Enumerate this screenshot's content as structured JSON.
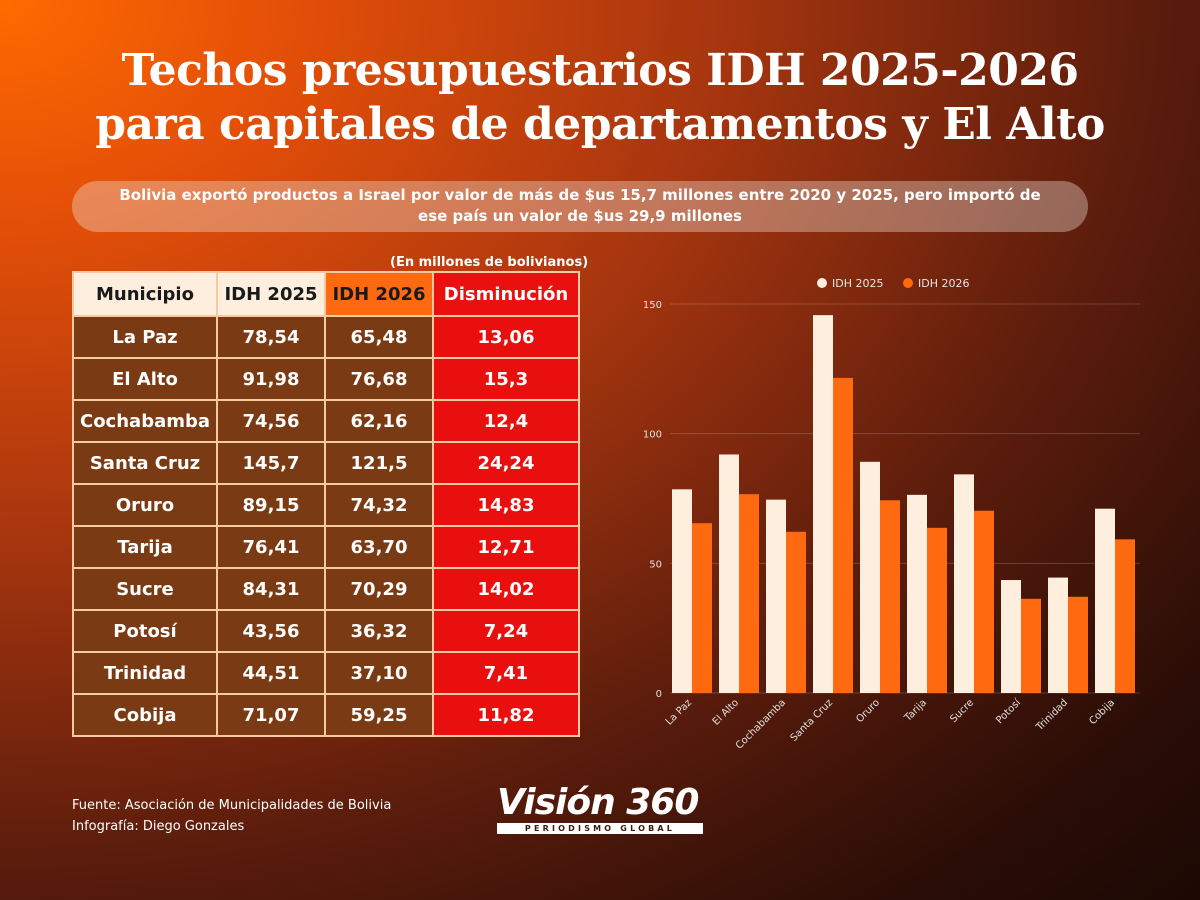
{
  "header": {
    "title_line1": "Techos presupuestarios IDH 2025-2026",
    "title_line2": "para capitales de departamentos y El Alto",
    "subtitle_line1": "Bolivia exportó productos a Israel por valor de más de $us  15,7 millones entre 2020 y 2025, pero importó de",
    "subtitle_line2": "ese país un valor de $us 29,9 millones"
  },
  "table": {
    "units": "(En millones de bolivianos)",
    "headers": [
      "Municipio",
      "IDH 2025",
      "IDH 2026",
      "Disminución"
    ],
    "rows": [
      [
        "La Paz",
        "78,54",
        "65,48",
        "13,06"
      ],
      [
        "El Alto",
        "91,98",
        "76,68",
        "15,3"
      ],
      [
        "Cochabamba",
        "74,56",
        "62,16",
        "12,4"
      ],
      [
        "Santa Cruz",
        "145,7",
        "121,5",
        "24,24"
      ],
      [
        "Oruro",
        "89,15",
        "74,32",
        "14,83"
      ],
      [
        "Tarija",
        "76,41",
        "63,70",
        "12,71"
      ],
      [
        "Sucre",
        "84,31",
        "70,29",
        "14,02"
      ],
      [
        "Potosí",
        "43,56",
        "36,32",
        "7,24"
      ],
      [
        "Trinidad",
        "44,51",
        "37,10",
        "7,41"
      ],
      [
        "Cobija",
        "71,07",
        "59,25",
        "11,82"
      ]
    ]
  },
  "chart_data": {
    "type": "bar",
    "categories": [
      "La Paz",
      "El Alto",
      "Cochabamba",
      "Santa Cruz",
      "Oruro",
      "Tarija",
      "Sucre",
      "Potosí",
      "Trinidad",
      "Cobija"
    ],
    "series": [
      {
        "name": "IDH 2025",
        "values": [
          78.54,
          91.98,
          74.56,
          145.7,
          89.15,
          76.41,
          84.31,
          43.56,
          44.51,
          71.07
        ],
        "color": "#fdeedd"
      },
      {
        "name": "IDH 2026",
        "values": [
          65.48,
          76.68,
          62.16,
          121.5,
          74.32,
          63.7,
          70.29,
          36.32,
          37.1,
          59.25
        ],
        "color": "#ff6a10"
      }
    ],
    "ylim": [
      0,
      150
    ],
    "yticks": [
      "0",
      "50",
      "100",
      "150"
    ],
    "ytick_values": [
      0,
      50,
      100,
      150
    ],
    "legend_position": "top",
    "grid": true
  },
  "footer": {
    "source": "Fuente: Asociación de Municipalidades de Bolivia",
    "credit": "Infografía: Diego Gonzales"
  },
  "logo": {
    "name": "Visión 360",
    "tagline": "PERIODISMO GLOBAL"
  },
  "colors": {
    "body_cell": "#7a3b14",
    "decrease_cell": "#ea0f0f",
    "accent_orange": "#ff6a10",
    "cream": "#fdeedd"
  }
}
